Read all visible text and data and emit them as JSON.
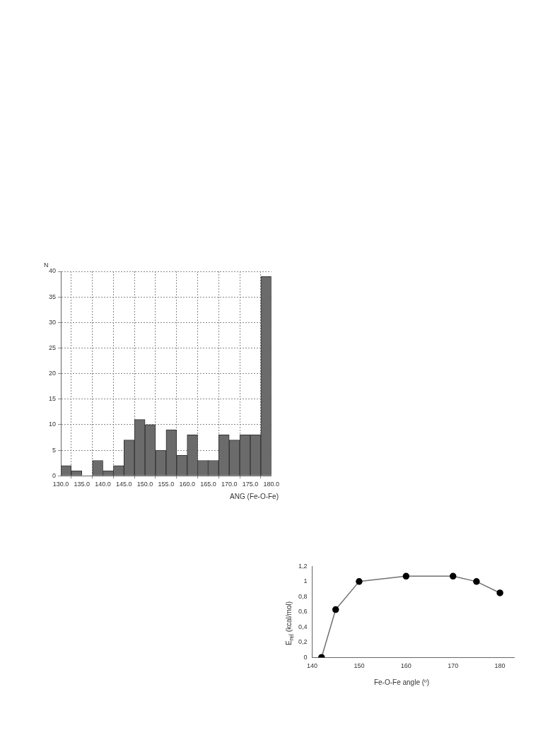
{
  "chart_data": [
    {
      "type": "histogram",
      "xlabel": "ANG (Fe-O-Fe)",
      "ylabel": "N",
      "bins": [
        130,
        132.5,
        135,
        137.5,
        140,
        142.5,
        145,
        147.5,
        150,
        152.5,
        155,
        157.5,
        160,
        162.5,
        165,
        167.5,
        170,
        172.5,
        175,
        177.5,
        180
      ],
      "values": [
        2,
        1,
        0,
        3,
        1,
        2,
        7,
        11,
        10,
        5,
        9,
        4,
        8,
        3,
        3,
        8,
        7,
        8,
        8,
        39
      ],
      "color": "#6b6b6b",
      "xlim": [
        130,
        180
      ],
      "xticks": [
        {
          "value": 130,
          "label": "130.0"
        },
        {
          "value": 135,
          "label": "135.0"
        },
        {
          "value": 140,
          "label": "140.0"
        },
        {
          "value": 145,
          "label": "145.0"
        },
        {
          "value": 150,
          "label": "150.0"
        },
        {
          "value": 155,
          "label": "155.0"
        },
        {
          "value": 160,
          "label": "160.0"
        },
        {
          "value": 165,
          "label": "165.0"
        },
        {
          "value": 170,
          "label": "170.0"
        },
        {
          "value": 175,
          "label": "175.0"
        },
        {
          "value": 180,
          "label": "180.0"
        }
      ],
      "ylim": [
        0,
        40
      ],
      "yticks": [
        0,
        5,
        10,
        15,
        20,
        25,
        30,
        35,
        40
      ],
      "grid": true
    },
    {
      "type": "line",
      "xlabel": "Fe-O-Fe angle (º)",
      "ylabel": "E$_{rel}$ (kcal/mol)",
      "x": [
        142,
        145,
        150,
        160,
        170,
        175,
        180
      ],
      "values": [
        0,
        0.63,
        1,
        1.07,
        1.07,
        1,
        0.85
      ],
      "color": "#707070",
      "marker": "circle",
      "xlim": [
        140,
        183
      ],
      "xticks": [
        140,
        150,
        160,
        170,
        180
      ],
      "ylim": [
        0,
        1.2
      ],
      "yticks": [
        0,
        {
          "value": 0.2,
          "label": "0,2"
        },
        {
          "value": 0.4,
          "label": "0,4"
        },
        {
          "value": 0.6,
          "label": "0,6"
        },
        {
          "value": 0.8,
          "label": "0,8"
        },
        1,
        {
          "value": 1.2,
          "label": "1,2"
        }
      ],
      "grid": false
    }
  ]
}
